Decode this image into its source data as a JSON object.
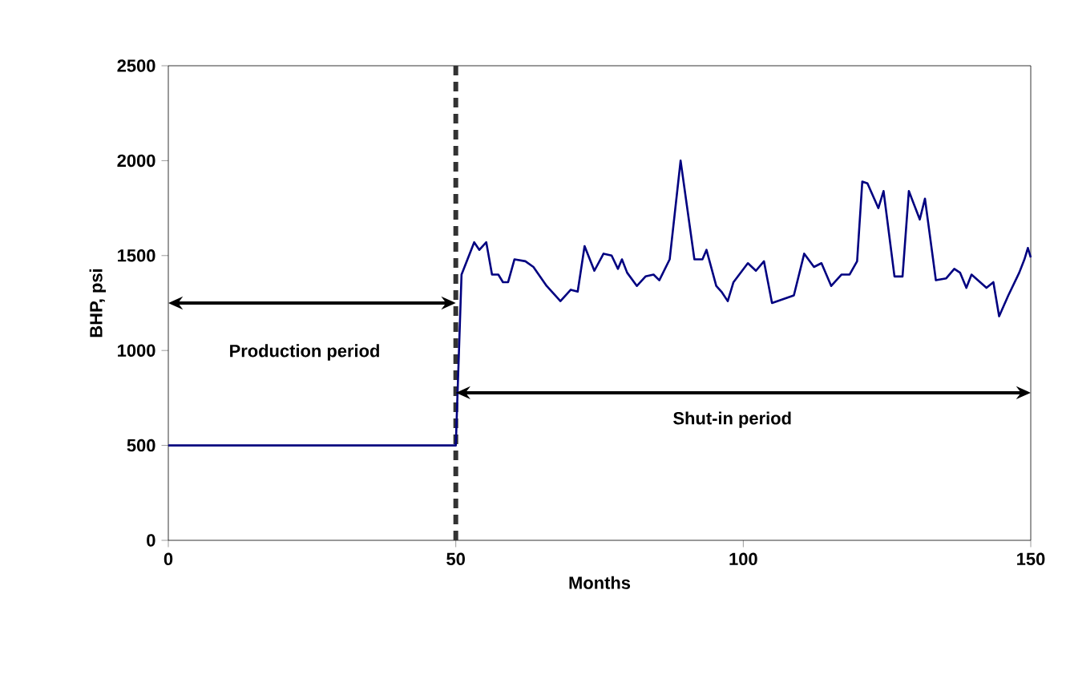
{
  "chart_data": {
    "type": "line",
    "xlabel": "Months",
    "ylabel": "BHP, psi",
    "x": [
      0,
      50,
      51,
      53.2,
      54.1,
      55.3,
      56.3,
      57.4,
      58.2,
      59.1,
      60.2,
      62.1,
      63.5,
      65.8,
      68.2,
      70,
      71.2,
      72.4,
      74.1,
      75.7,
      77.1,
      78.2,
      78.9,
      79.8,
      81.5,
      83,
      84.4,
      85.4,
      87.2,
      89.1,
      91.5,
      92.9,
      93.6,
      95.3,
      96.2,
      97.3,
      98.3,
      100.8,
      102.2,
      103.6,
      105,
      108.8,
      110.6,
      112.3,
      113.6,
      115.3,
      117.1,
      118.5,
      119.8,
      120.7,
      121.6,
      123.5,
      124.4,
      126.3,
      127.7,
      128.8,
      130.7,
      131.6,
      133.5,
      135.3,
      136.7,
      137.7,
      138.8,
      139.7,
      142.3,
      143.5,
      144.5,
      146.1,
      148,
      148.9,
      149.5,
      150
    ],
    "series": [
      {
        "color": "#000080",
        "values": [
          500,
          500,
          1400,
          1570,
          1530,
          1570,
          1400,
          1400,
          1360,
          1360,
          1480,
          1470,
          1440,
          1340,
          1260,
          1320,
          1310,
          1550,
          1420,
          1510,
          1500,
          1430,
          1480,
          1410,
          1340,
          1390,
          1400,
          1370,
          1480,
          2000,
          1480,
          1480,
          1530,
          1340,
          1310,
          1260,
          1360,
          1460,
          1420,
          1470,
          1250,
          1290,
          1510,
          1440,
          1460,
          1340,
          1400,
          1400,
          1470,
          1890,
          1880,
          1750,
          1840,
          1390,
          1390,
          1840,
          1690,
          1800,
          1370,
          1380,
          1430,
          1410,
          1330,
          1400,
          1330,
          1360,
          1180,
          1290,
          1410,
          1480,
          1540,
          1490
        ]
      }
    ],
    "xlim": [
      0,
      150
    ],
    "xticks": [
      0,
      50,
      100,
      150
    ],
    "ylim": [
      0,
      2500
    ],
    "yticks": [
      0,
      500,
      1000,
      1500,
      2000,
      2500
    ],
    "grid": false,
    "marker": "none",
    "line_style": "solid",
    "ref_lines": [
      {
        "axis": "x",
        "value": 50,
        "color": "#333333",
        "line_style": "dashed"
      }
    ],
    "annotations": [
      "Production period",
      "Shut-in period"
    ]
  }
}
